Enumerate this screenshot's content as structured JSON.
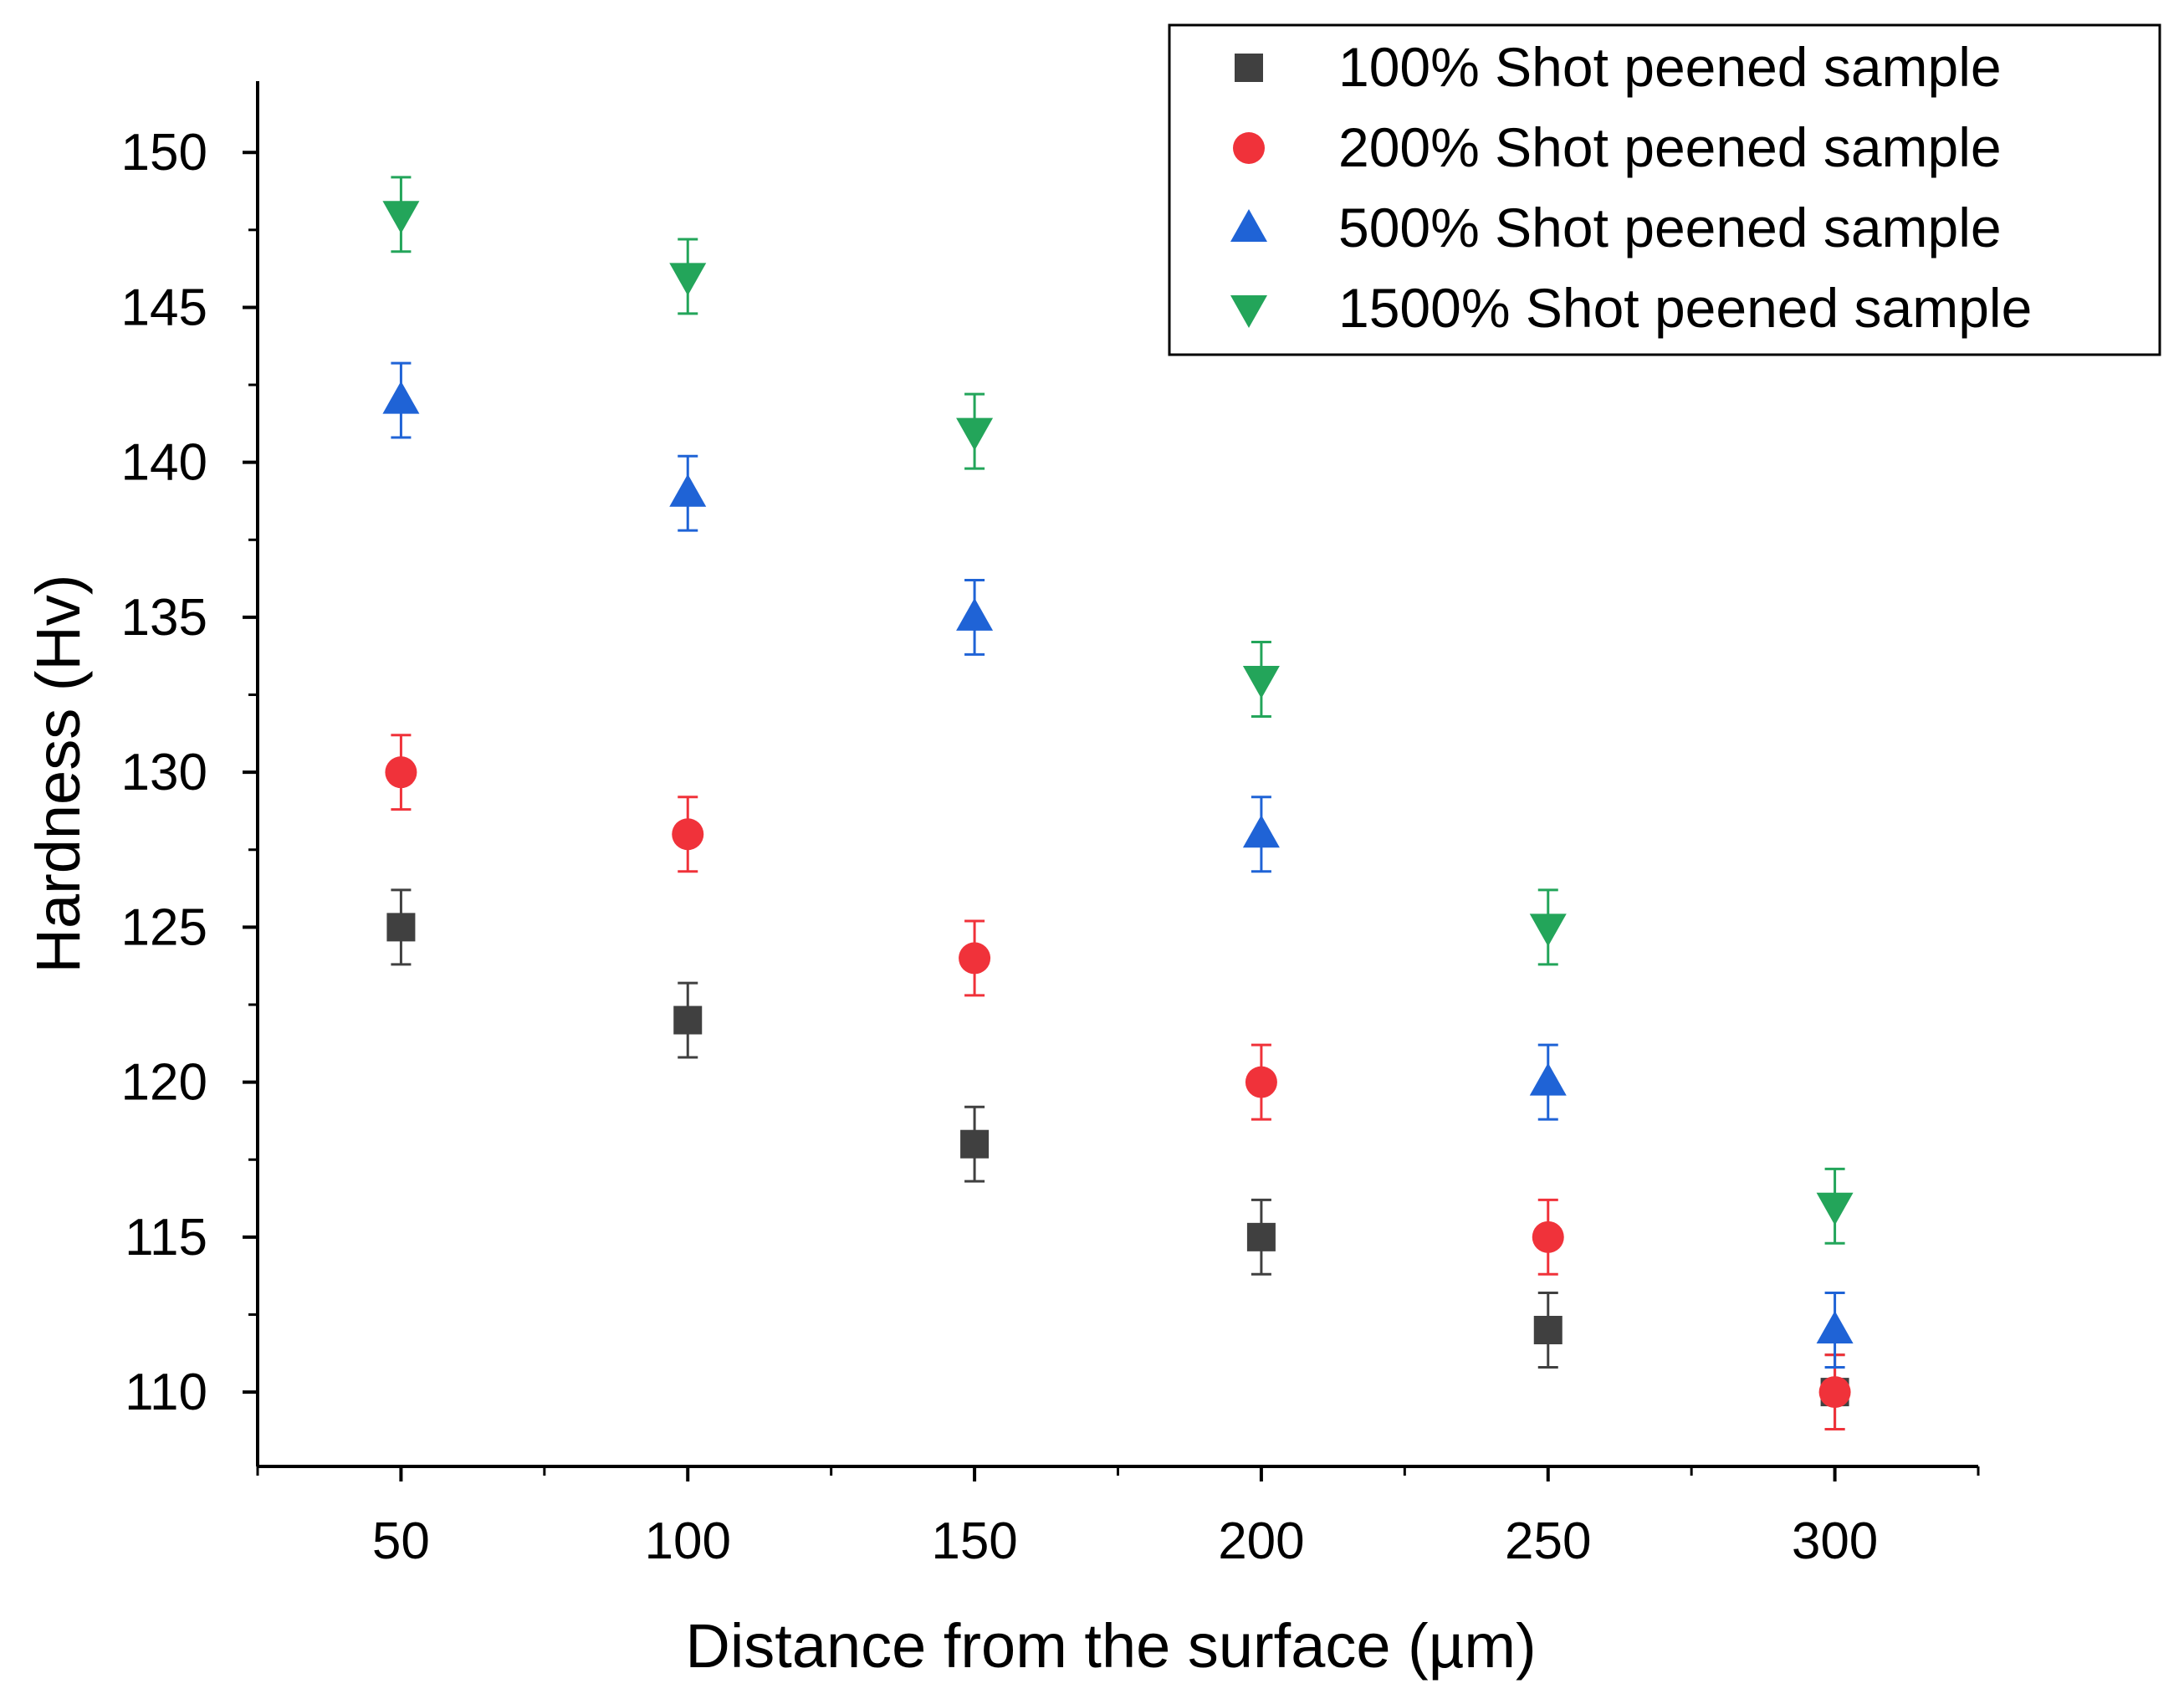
{
  "chart_data": {
    "type": "scatter",
    "title": "",
    "xlabel": "Distance from the surface (µm)",
    "ylabel": "Hardness (Hv)",
    "xlim": [
      25,
      325
    ],
    "ylim": [
      107.6,
      152.3
    ],
    "x": [
      50,
      100,
      150,
      200,
      250,
      300
    ],
    "x_ticks": [
      50,
      100,
      150,
      200,
      250,
      300
    ],
    "y_ticks": [
      110,
      115,
      120,
      125,
      130,
      135,
      140,
      145,
      150
    ],
    "error_bar": 1.2,
    "legend_position": "top-right",
    "series": [
      {
        "name": "100% Shot peened sample",
        "marker": "square",
        "color": "#404040",
        "values": [
          125,
          122,
          118,
          115,
          112,
          110
        ]
      },
      {
        "name": "200% Shot peened sample",
        "marker": "circle",
        "color": "#f0323a",
        "values": [
          130,
          128,
          124,
          120,
          115,
          110
        ]
      },
      {
        "name": "500% Shot peened sample",
        "marker": "triangle-up",
        "color": "#1f63d6",
        "values": [
          142,
          139,
          135,
          128,
          120,
          112
        ]
      },
      {
        "name": "1500% Shot peened sample",
        "marker": "triangle-down",
        "color": "#23a55a",
        "values": [
          148,
          146,
          141,
          133,
          125,
          116
        ]
      }
    ]
  }
}
